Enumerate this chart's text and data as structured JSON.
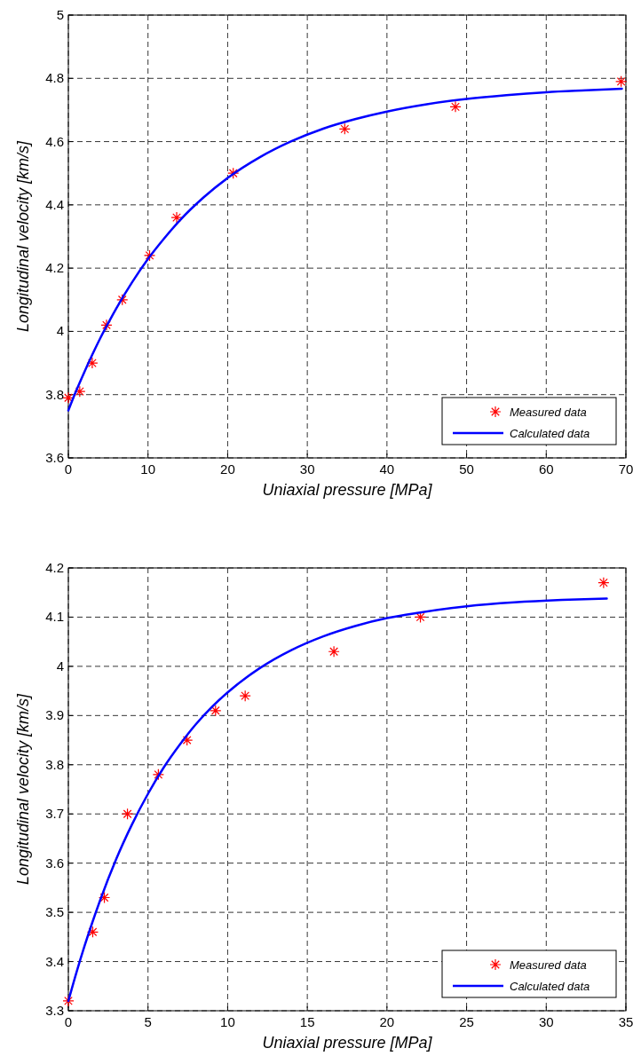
{
  "chart_data": [
    {
      "type": "scatter",
      "xlabel": "Uniaxial pressure [MPa]",
      "ylabel": "Longitudinal velocity [km/s]",
      "xlim": [
        0,
        70
      ],
      "ylim": [
        3.6,
        5
      ],
      "xticks": [
        0,
        10,
        20,
        30,
        40,
        50,
        60,
        70
      ],
      "yticks": [
        3.6,
        3.8,
        4,
        4.2,
        4.4,
        4.6,
        4.8,
        5
      ],
      "grid": true,
      "legend": "bottom right",
      "series": [
        {
          "name": "Measured data",
          "color": "#ff0000",
          "marker": "cross",
          "x": [
            0,
            1.43,
            3.0,
            4.79,
            6.77,
            10.2,
            13.6,
            20.7,
            34.7,
            48.6,
            69.4
          ],
          "values": [
            3.79,
            3.81,
            3.9,
            4.02,
            4.1,
            4.24,
            4.36,
            4.5,
            4.64,
            4.71,
            4.79
          ]
        },
        {
          "name": "Calculated data",
          "type": "line",
          "color": "#0000ff",
          "marker": "none",
          "x": [
            0,
            1,
            2,
            3,
            4,
            5,
            6,
            8,
            10,
            12,
            14,
            17,
            20,
            24,
            28,
            32,
            36,
            40,
            45,
            50,
            55,
            60,
            65,
            69.5
          ],
          "values": [
            3.75,
            3.813,
            3.871,
            3.926,
            3.978,
            4.026,
            4.072,
            4.155,
            4.229,
            4.293,
            4.351,
            4.424,
            4.485,
            4.55,
            4.601,
            4.641,
            4.671,
            4.695,
            4.718,
            4.735,
            4.747,
            4.756,
            4.762,
            4.767
          ]
        }
      ]
    },
    {
      "type": "scatter",
      "xlabel": "Uniaxial pressure [MPa]",
      "ylabel": "Longitudinal velocity [km/s]",
      "xlim": [
        0,
        35
      ],
      "ylim": [
        3.3,
        4.2
      ],
      "xticks": [
        0,
        5,
        10,
        15,
        20,
        25,
        30,
        35
      ],
      "yticks": [
        3.3,
        3.4,
        3.5,
        3.6,
        3.7,
        3.8,
        3.9,
        4,
        4.1,
        4.2
      ],
      "grid": true,
      "legend": "bottom right",
      "series": [
        {
          "name": "Measured data",
          "color": "#ff0000",
          "marker": "cross",
          "x": [
            0,
            1.53,
            2.26,
            3.71,
            5.65,
            7.45,
            9.24,
            11.1,
            16.67,
            22.1,
            33.6
          ],
          "values": [
            3.32,
            3.46,
            3.53,
            3.7,
            3.78,
            3.85,
            3.91,
            3.94,
            4.03,
            4.1,
            4.17
          ]
        },
        {
          "name": "Calculated data",
          "type": "line",
          "color": "#0000ff",
          "marker": "none",
          "x": [
            0,
            0.5,
            1,
            1.5,
            2,
            3,
            4,
            5,
            6,
            7,
            8,
            9,
            10,
            12,
            14,
            16,
            18,
            20,
            22,
            25,
            28,
            31,
            33.8
          ],
          "values": [
            3.32,
            3.377,
            3.43,
            3.479,
            3.525,
            3.608,
            3.679,
            3.741,
            3.795,
            3.841,
            3.882,
            3.917,
            3.947,
            3.996,
            4.033,
            4.061,
            4.082,
            4.098,
            4.109,
            4.122,
            4.13,
            4.135,
            4.138
          ]
        }
      ]
    }
  ]
}
